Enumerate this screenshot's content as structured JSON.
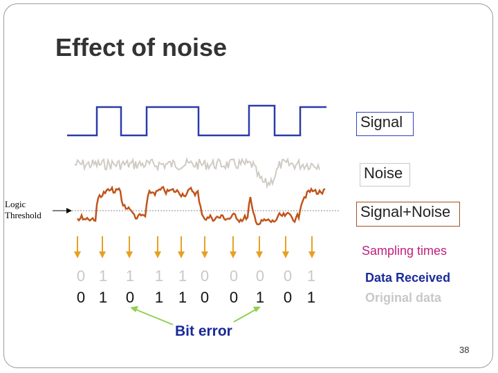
{
  "title": "Effect of noise",
  "labels": {
    "signal": "Signal",
    "noise": "Noise",
    "signal_noise": "Signal+Noise",
    "logic_threshold_line1": "Logic",
    "logic_threshold_line2": "Threshold",
    "sampling_times": "Sampling times",
    "data_received": "Data Received",
    "original_data": "Original data",
    "bit_error": "Bit error"
  },
  "bits": {
    "original": [
      "0",
      "1",
      "1",
      "1",
      "1",
      "0",
      "0",
      "0",
      "0",
      "1"
    ],
    "received": [
      "0",
      "1",
      "0",
      "1",
      "1",
      "0",
      "0",
      "1",
      "0",
      "1"
    ]
  },
  "page_number": "38",
  "colors": {
    "signal": "#2a3aa8",
    "noise": "#cfcbc4",
    "signal_noise": "#c0541a",
    "threshold": "#8a8a8a",
    "sampling_arrow": "#e8a020",
    "bit_error_arrow": "#90d050",
    "sampling_text": "#c0207a",
    "legend_received": "#1a2a9a",
    "legend_original": "#c8c8c8"
  }
}
